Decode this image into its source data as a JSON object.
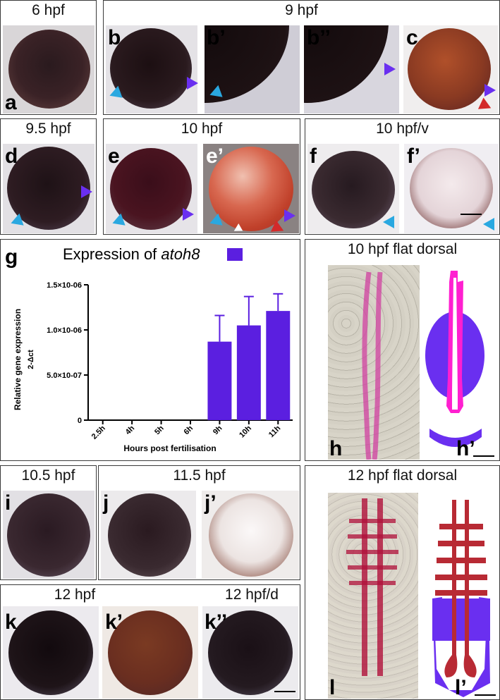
{
  "colors": {
    "bar": "#5b1fe0",
    "violet": "#6a2ff0",
    "blue": "#2aa8e0",
    "red": "#d32a2a",
    "magenta": "#ff1fd0",
    "crimson": "#b82a34"
  },
  "rows": {
    "r1": {
      "t6": "6 hpf",
      "t9": "9 hpf"
    },
    "r2": {
      "t95": "9.5 hpf",
      "t10": "10 hpf",
      "t10v": "10 hpf/v"
    },
    "r5": {
      "t105": "10.5 hpf",
      "t115": "11.5 hpf"
    },
    "r6": {
      "t12": "12 hpf",
      "t12d": "12 hpf/d"
    }
  },
  "panel_labels": {
    "a": "a",
    "b": "b",
    "b1": "b’",
    "b2": "b’’",
    "c": "c",
    "d": "d",
    "e": "e",
    "e1": "e’",
    "f": "f",
    "f1": "f’",
    "g": "g",
    "h": "h",
    "h1": "h’",
    "i": "i",
    "j": "j",
    "j1": "j’",
    "k": "k",
    "k1": "k’",
    "k2": "k’’",
    "l": "l",
    "l1": "l’"
  },
  "flat": {
    "h_title": "10 hpf flat dorsal",
    "l_title": "12 hpf flat dorsal"
  },
  "chart_data": {
    "type": "bar",
    "title_prefix": "Expression of ",
    "title_gene": "atoh8",
    "categories": [
      "2.5h",
      "4h",
      "5h",
      "6h",
      "9h",
      "10h",
      "11h"
    ],
    "values": [
      0,
      0,
      0,
      0,
      8.7e-07,
      1.05e-06,
      1.21e-06
    ],
    "errors": [
      0,
      0,
      0,
      0,
      2.9e-07,
      3.2e-07,
      1.9e-07
    ],
    "ylim": [
      0,
      1.5e-06
    ],
    "yticks": [
      0,
      5e-07,
      1e-06,
      1.5e-06
    ],
    "ytick_labels": [
      "0",
      "5.0×10-07",
      "1.0×10-06",
      "1.5×10-06"
    ],
    "xlabel": "Hours post fertilisation",
    "ylabel": "Relative gene expression",
    "ylabel2": "2-Δct",
    "series_color": "#5b1fe0"
  }
}
